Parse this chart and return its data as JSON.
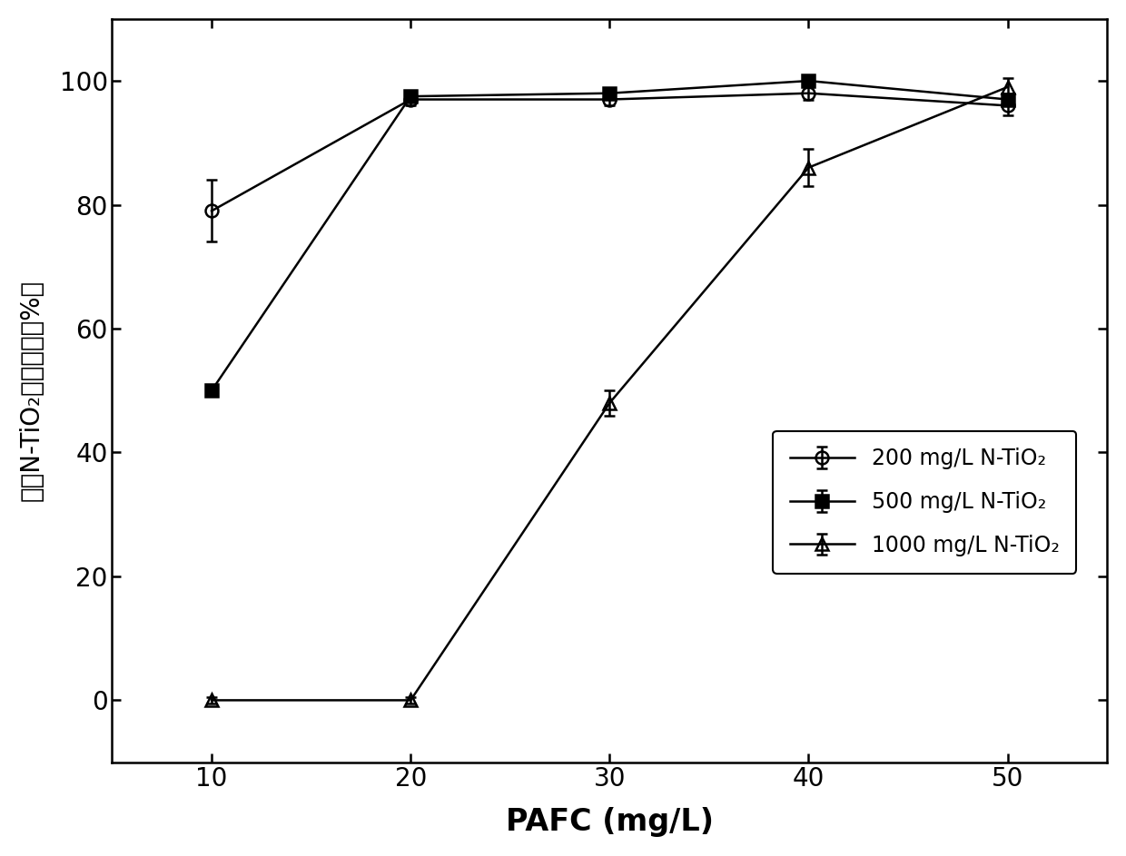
{
  "series": [
    {
      "label": "200 mg/L N-TiO₂",
      "x": [
        10,
        20,
        30,
        40,
        50
      ],
      "y": [
        79,
        97,
        97,
        98,
        96
      ],
      "yerr": [
        5,
        1,
        1,
        1,
        1.5
      ],
      "marker": "o",
      "fillstyle": "none",
      "color": "black",
      "linewidth": 1.8,
      "markersize": 10
    },
    {
      "label": "500 mg/L N-TiO₂",
      "x": [
        10,
        20,
        30,
        40,
        50
      ],
      "y": [
        50,
        97.5,
        98,
        100,
        97
      ],
      "yerr": [
        0.5,
        0.5,
        0.5,
        0.5,
        0.5
      ],
      "marker": "s",
      "fillstyle": "full",
      "color": "black",
      "linewidth": 1.8,
      "markersize": 10
    },
    {
      "label": "1000 mg/L N-TiO₂",
      "x": [
        10,
        20,
        30,
        40,
        50
      ],
      "y": [
        0,
        0,
        48,
        86,
        99
      ],
      "yerr": [
        0.5,
        0.5,
        2,
        3,
        1.5
      ],
      "marker": "^",
      "fillstyle": "none",
      "color": "black",
      "linewidth": 1.8,
      "markersize": 10
    }
  ],
  "xlabel": "PAFC (mg/L)",
  "ylabel": "纳米N-TiO₂混凝效率（%）",
  "xlim": [
    5,
    55
  ],
  "ylim": [
    -10,
    110
  ],
  "xticks": [
    10,
    20,
    30,
    40,
    50
  ],
  "yticks": [
    0,
    20,
    40,
    60,
    80,
    100
  ],
  "background_color": "white"
}
